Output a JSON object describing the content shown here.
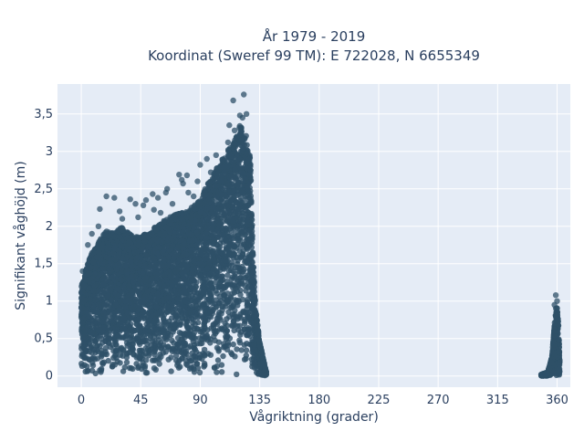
{
  "chart_data": {
    "type": "scatter",
    "title_line1": "År 1979 - 2019",
    "title_line2": "Koordinat (Sweref 99 TM): E 722028, N 6655349",
    "xlabel": "Vågriktning (grader)",
    "ylabel": "Signifikant våghöjd (m)",
    "xlim": [
      -18,
      370
    ],
    "ylim": [
      -0.15,
      3.9
    ],
    "x_ticks": [
      0,
      45,
      90,
      135,
      180,
      225,
      270,
      315,
      360
    ],
    "x_tick_labels": [
      "0",
      "45",
      "90",
      "135",
      "180",
      "225",
      "270",
      "315",
      "360"
    ],
    "y_ticks": [
      0,
      0.5,
      1,
      1.5,
      2,
      2.5,
      3,
      3.5
    ],
    "y_tick_labels": [
      "0",
      "0,5",
      "1",
      "1,5",
      "2",
      "2,5",
      "3",
      "3,5"
    ],
    "grid": true,
    "colors": {
      "marker": "#2e5068",
      "plot_bg": "#e5ecf6",
      "grid": "#ffffff",
      "text": "#2a3f5f"
    },
    "envelope_main": {
      "direction": [
        0,
        3,
        8,
        15,
        20,
        25,
        30,
        40,
        50,
        60,
        70,
        80,
        90,
        95,
        100,
        105,
        110,
        115,
        118,
        120,
        122,
        125,
        128,
        130,
        132,
        135,
        140
      ],
      "max_height": [
        1.2,
        1.4,
        1.65,
        1.85,
        1.95,
        1.9,
        2.0,
        1.85,
        1.9,
        2.05,
        2.15,
        2.2,
        2.35,
        2.55,
        2.7,
        2.85,
        3.0,
        3.1,
        3.25,
        3.35,
        3.3,
        3.2,
        2.9,
        1.6,
        0.9,
        0.45,
        0.05
      ]
    },
    "envelope_secondary": {
      "direction": [
        348,
        353,
        356,
        358,
        359,
        360,
        361,
        362
      ],
      "max_height": [
        0.02,
        0.05,
        0.25,
        0.7,
        0.9,
        0.95,
        0.7,
        0.2
      ]
    },
    "outliers": [
      {
        "x": 115,
        "y": 3.68
      },
      {
        "x": 123,
        "y": 3.76
      },
      {
        "x": 120,
        "y": 3.48
      },
      {
        "x": 122,
        "y": 3.45
      },
      {
        "x": 125,
        "y": 3.5
      },
      {
        "x": 112,
        "y": 3.35
      },
      {
        "x": 116,
        "y": 3.28
      },
      {
        "x": 111,
        "y": 3.12
      },
      {
        "x": 102,
        "y": 2.95
      },
      {
        "x": 95,
        "y": 2.9
      },
      {
        "x": 90,
        "y": 2.82
      },
      {
        "x": 98,
        "y": 2.72
      },
      {
        "x": 80,
        "y": 2.68
      },
      {
        "x": 74,
        "y": 2.69
      },
      {
        "x": 76,
        "y": 2.62
      },
      {
        "x": 77,
        "y": 2.57
      },
      {
        "x": 65,
        "y": 2.5
      },
      {
        "x": 64,
        "y": 2.45
      },
      {
        "x": 58,
        "y": 2.38
      },
      {
        "x": 54,
        "y": 2.43
      },
      {
        "x": 49,
        "y": 2.35
      },
      {
        "x": 47,
        "y": 2.28
      },
      {
        "x": 41,
        "y": 2.3
      },
      {
        "x": 37,
        "y": 2.36
      },
      {
        "x": 19,
        "y": 2.4
      },
      {
        "x": 25,
        "y": 2.38
      },
      {
        "x": 14,
        "y": 2.23
      },
      {
        "x": 55,
        "y": 2.22
      },
      {
        "x": 60,
        "y": 2.18
      },
      {
        "x": 31,
        "y": 2.1
      },
      {
        "x": 29,
        "y": 2.2
      },
      {
        "x": 43,
        "y": 2.12
      },
      {
        "x": 81,
        "y": 2.45
      },
      {
        "x": 85,
        "y": 2.4
      },
      {
        "x": 69,
        "y": 2.3
      },
      {
        "x": 88,
        "y": 2.6
      },
      {
        "x": 8,
        "y": 1.9
      },
      {
        "x": 13,
        "y": 2.0
      },
      {
        "x": 5,
        "y": 1.75
      },
      {
        "x": 1,
        "y": 1.4
      },
      {
        "x": 359,
        "y": 1.08
      },
      {
        "x": 360,
        "y": 1.0
      },
      {
        "x": 358,
        "y": 0.95
      },
      {
        "x": 360,
        "y": 0.9
      },
      {
        "x": 348,
        "y": 0.02
      },
      {
        "x": 351,
        "y": 0.03
      }
    ]
  }
}
